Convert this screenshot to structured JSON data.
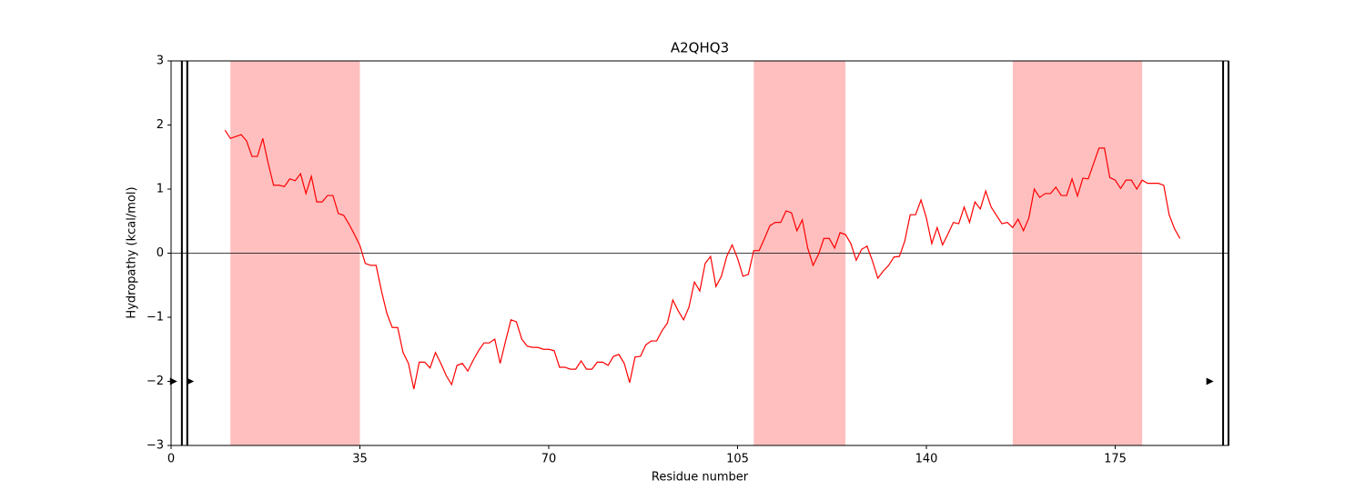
{
  "chart_data": {
    "type": "line",
    "title": "A2QHQ3",
    "x_label": "Residue number",
    "y_label": "Hydropathy (kcal/mol)",
    "x": [
      10,
      11,
      12,
      13,
      14,
      15,
      16,
      17,
      18,
      19,
      20,
      21,
      22,
      23,
      24,
      25,
      26,
      27,
      28,
      29,
      30,
      31,
      32,
      33,
      34,
      35,
      36,
      37,
      38,
      39,
      40,
      41,
      42,
      43,
      44,
      45,
      46,
      47,
      48,
      49,
      50,
      51,
      52,
      53,
      54,
      55,
      56,
      57,
      58,
      59,
      60,
      61,
      62,
      63,
      64,
      65,
      66,
      67,
      68,
      69,
      70,
      71,
      72,
      73,
      74,
      75,
      76,
      77,
      78,
      79,
      80,
      81,
      82,
      83,
      84,
      85,
      86,
      87,
      88,
      89,
      90,
      91,
      92,
      93,
      94,
      95,
      96,
      97,
      98,
      99,
      100,
      101,
      102,
      103,
      104,
      105,
      106,
      107,
      108,
      109,
      110,
      111,
      112,
      113,
      114,
      115,
      116,
      117,
      118,
      119,
      120,
      121,
      122,
      123,
      124,
      125,
      126,
      127,
      128,
      129,
      130,
      131,
      132,
      133,
      134,
      135,
      136,
      137,
      138,
      139,
      140,
      141,
      142,
      143,
      144,
      145,
      146,
      147,
      148,
      149,
      150,
      151,
      152,
      153,
      154,
      155,
      156,
      157,
      158,
      159,
      160,
      161,
      162,
      163,
      164,
      165,
      166,
      167,
      168,
      169,
      170,
      171,
      172,
      173,
      174,
      175,
      176,
      177,
      178,
      179,
      180,
      181,
      182,
      183,
      184,
      185,
      186,
      187
    ],
    "values": [
      1.92,
      1.79,
      1.82,
      1.85,
      1.75,
      1.51,
      1.51,
      1.79,
      1.4,
      1.06,
      1.06,
      1.04,
      1.16,
      1.13,
      1.24,
      0.93,
      1.2,
      0.8,
      0.8,
      0.9,
      0.9,
      0.62,
      0.59,
      0.45,
      0.29,
      0.12,
      -0.16,
      -0.19,
      -0.19,
      -0.59,
      -0.94,
      -1.16,
      -1.16,
      -1.55,
      -1.72,
      -2.12,
      -1.7,
      -1.7,
      -1.79,
      -1.55,
      -1.72,
      -1.91,
      -2.05,
      -1.75,
      -1.72,
      -1.84,
      -1.67,
      -1.52,
      -1.4,
      -1.4,
      -1.34,
      -1.72,
      -1.37,
      -1.04,
      -1.07,
      -1.34,
      -1.45,
      -1.47,
      -1.47,
      -1.5,
      -1.5,
      -1.52,
      -1.78,
      -1.78,
      -1.81,
      -1.81,
      -1.68,
      -1.81,
      -1.81,
      -1.7,
      -1.7,
      -1.75,
      -1.61,
      -1.58,
      -1.72,
      -2.02,
      -1.62,
      -1.61,
      -1.43,
      -1.37,
      -1.37,
      -1.21,
      -1.09,
      -0.73,
      -0.9,
      -1.04,
      -0.84,
      -0.45,
      -0.59,
      -0.16,
      -0.05,
      -0.52,
      -0.36,
      -0.05,
      0.13,
      -0.08,
      -0.36,
      -0.33,
      0.04,
      0.04,
      0.23,
      0.43,
      0.48,
      0.48,
      0.66,
      0.63,
      0.35,
      0.52,
      0.08,
      -0.19,
      -0.02,
      0.23,
      0.23,
      0.08,
      0.32,
      0.29,
      0.15,
      -0.11,
      0.06,
      0.11,
      -0.12,
      -0.39,
      -0.28,
      -0.19,
      -0.06,
      -0.05,
      0.19,
      0.6,
      0.6,
      0.83,
      0.55,
      0.15,
      0.4,
      0.13,
      0.3,
      0.48,
      0.46,
      0.72,
      0.48,
      0.8,
      0.69,
      0.97,
      0.72,
      0.59,
      0.46,
      0.48,
      0.4,
      0.53,
      0.35,
      0.55,
      1.0,
      0.87,
      0.93,
      0.93,
      1.03,
      0.9,
      0.9,
      1.16,
      0.89,
      1.17,
      1.16,
      1.4,
      1.64,
      1.64,
      1.18,
      1.14,
      1.01,
      1.14,
      1.14,
      1.0,
      1.14,
      1.09,
      1.09,
      1.09,
      1.06,
      0.6,
      0.38,
      0.23
    ],
    "color": "#ff0000",
    "xlim": [
      0,
      196
    ],
    "ylim": [
      -3,
      3
    ],
    "xticks": [
      0,
      35,
      70,
      105,
      140,
      175
    ],
    "yticks": [
      {
        "value": -3,
        "label": "−3"
      },
      {
        "value": -2,
        "label": "−2"
      },
      {
        "value": -1,
        "label": "−1"
      },
      0,
      1,
      2,
      3
    ],
    "shaded_regions": [
      [
        11,
        35
      ],
      [
        108,
        125
      ],
      [
        156,
        180
      ]
    ],
    "shade_color": "#ffbfbf",
    "hline": 0,
    "vlines": [
      2,
      3,
      195,
      196
    ],
    "markers": {
      "x": [
        0.3,
        3.4,
        192.4
      ],
      "y": [
        -2,
        -2,
        -2
      ]
    }
  }
}
